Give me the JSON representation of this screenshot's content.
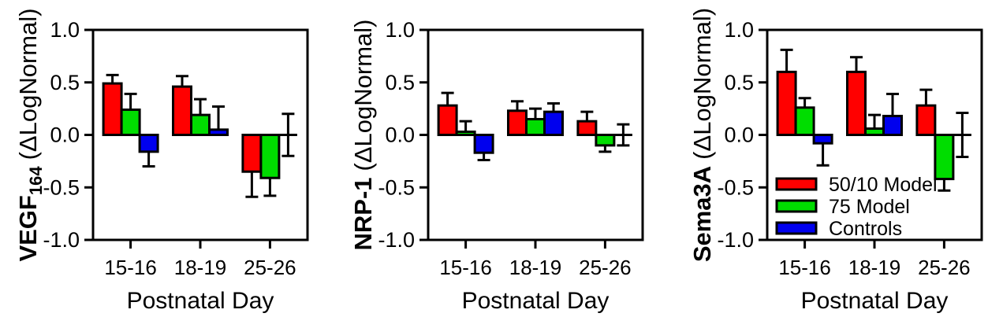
{
  "figure": {
    "xlabel": "Postnatal Day",
    "y_axis_units": "(ΔLogNormal)",
    "categories": [
      "15-16",
      "18-19",
      "25-26"
    ],
    "y_ticks": [
      {
        "value": 1.0,
        "label": "1.0"
      },
      {
        "value": 0.5,
        "label": "0.5"
      },
      {
        "value": 0.0,
        "label": "0.0"
      },
      {
        "value": -0.5,
        "label": "-0.5"
      },
      {
        "value": -1.0,
        "label": "-1.0"
      }
    ]
  },
  "legend": {
    "position": "inside-bottom-left-of-third-panel",
    "items": [
      {
        "label": "50/10 Model",
        "color": "#ff0000"
      },
      {
        "label": "75 Model",
        "color": "#00dd00"
      },
      {
        "label": "Controls",
        "color": "#0000ee"
      }
    ]
  },
  "chart_data": [
    {
      "type": "bar",
      "title": "VEGF164",
      "ylabel": {
        "main": "VEGF",
        "sub": "164",
        "units": "(ΔLogNormal)"
      },
      "xlabel": "Postnatal Day",
      "categories": [
        "15-16",
        "18-19",
        "25-26"
      ],
      "ylim": [
        -1.0,
        1.0
      ],
      "grid": false,
      "show_legend": false,
      "series": [
        {
          "name": "50/10 Model",
          "color": "#ff0000",
          "values": [
            0.49,
            0.46,
            -0.35
          ],
          "errors": [
            0.08,
            0.1,
            0.24
          ]
        },
        {
          "name": "75 Model",
          "color": "#00dd00",
          "values": [
            0.24,
            0.19,
            -0.41
          ],
          "errors": [
            0.15,
            0.15,
            0.17
          ]
        },
        {
          "name": "Controls",
          "color": "#0000ee",
          "values": [
            -0.16,
            0.05,
            0.0
          ],
          "errors": [
            0.14,
            0.22,
            0.2
          ]
        }
      ]
    },
    {
      "type": "bar",
      "title": "NRP-1",
      "ylabel": {
        "main": "NRP-1",
        "sub": "",
        "units": "(ΔLogNormal)"
      },
      "xlabel": "Postnatal Day",
      "categories": [
        "15-16",
        "18-19",
        "25-26"
      ],
      "ylim": [
        -1.0,
        1.0
      ],
      "grid": false,
      "show_legend": false,
      "series": [
        {
          "name": "50/10 Model",
          "color": "#ff0000",
          "values": [
            0.28,
            0.23,
            0.13
          ],
          "errors": [
            0.12,
            0.09,
            0.09
          ]
        },
        {
          "name": "75 Model",
          "color": "#00dd00",
          "values": [
            0.03,
            0.15,
            -0.1
          ],
          "errors": [
            0.1,
            0.1,
            0.06
          ]
        },
        {
          "name": "Controls",
          "color": "#0000ee",
          "values": [
            -0.17,
            0.22,
            0.0
          ],
          "errors": [
            0.07,
            0.08,
            0.1
          ]
        }
      ]
    },
    {
      "type": "bar",
      "title": "Sema3A",
      "ylabel": {
        "main": "Sema3A",
        "sub": "",
        "units": "(ΔLogNormal)"
      },
      "xlabel": "Postnatal Day",
      "categories": [
        "15-16",
        "18-19",
        "25-26"
      ],
      "ylim": [
        -1.0,
        1.0
      ],
      "grid": false,
      "show_legend": true,
      "series": [
        {
          "name": "50/10 Model",
          "color": "#ff0000",
          "values": [
            0.6,
            0.6,
            0.28
          ],
          "errors": [
            0.21,
            0.14,
            0.15
          ]
        },
        {
          "name": "75 Model",
          "color": "#00dd00",
          "values": [
            0.26,
            0.06,
            -0.42
          ],
          "errors": [
            0.09,
            0.13,
            0.11
          ]
        },
        {
          "name": "Controls",
          "color": "#0000ee",
          "values": [
            -0.08,
            0.18,
            0.0
          ],
          "errors": [
            0.21,
            0.21,
            0.21
          ]
        }
      ]
    }
  ]
}
